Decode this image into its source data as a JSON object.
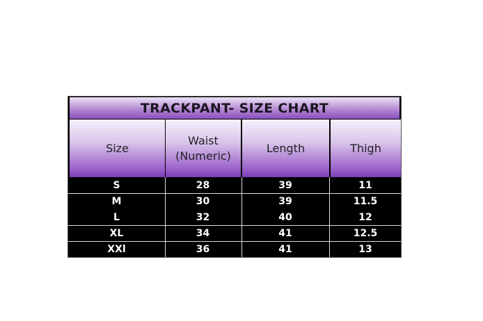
{
  "title": "TRACKPANT- SIZE CHART",
  "headers": [
    "Size",
    "Waist\n(Numeric)",
    "Length",
    "Thigh"
  ],
  "rows": [
    [
      "S",
      "28",
      "39",
      "11"
    ],
    [
      "M",
      "30",
      "39",
      "11.5"
    ],
    [
      "L",
      "32",
      "40",
      "12"
    ],
    [
      "XL",
      "34",
      "41",
      "12.5"
    ],
    [
      "XXl",
      "36",
      "41",
      "13"
    ]
  ],
  "colors": {
    "header_purple": "#8a4fbf",
    "body_bg": "#000000",
    "body_text": "#ffffff"
  }
}
